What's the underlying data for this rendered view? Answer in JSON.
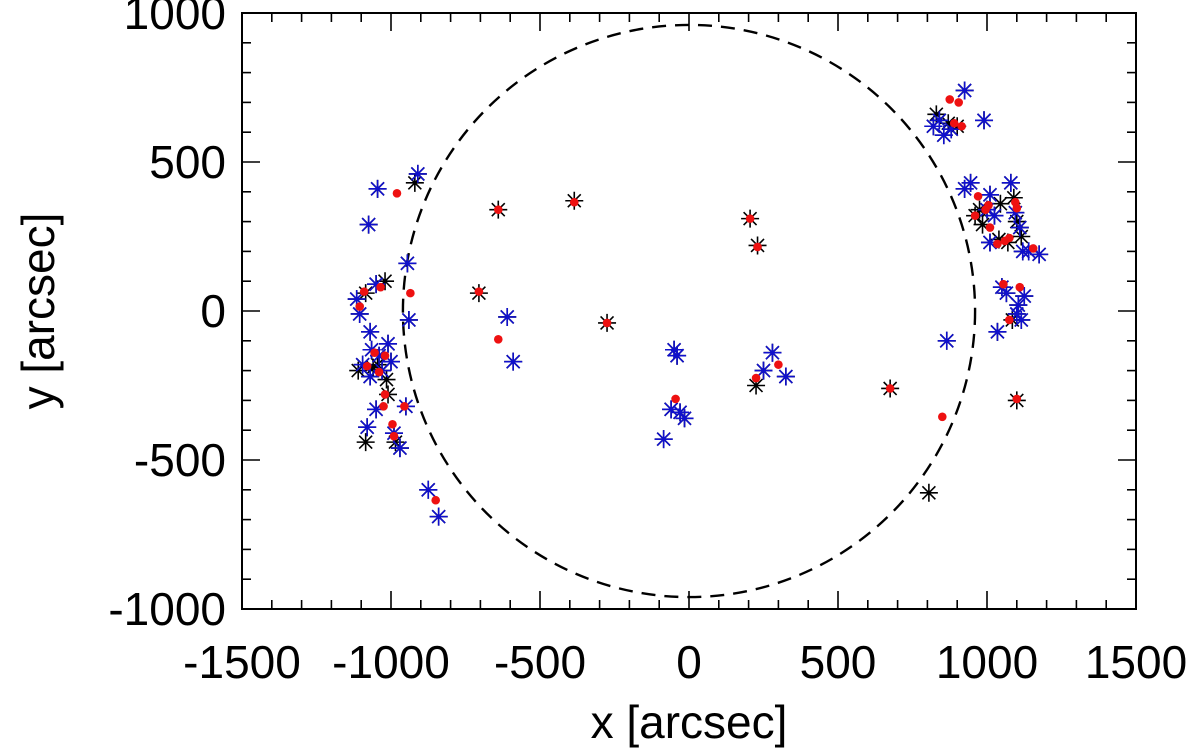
{
  "chart_data": {
    "type": "scatter",
    "title": "",
    "xlabel": "x [arcsec]",
    "ylabel": "y [arcsec]",
    "xlim": [
      -1500,
      1500
    ],
    "ylim": [
      -1000,
      1000
    ],
    "xticks": [
      -1500,
      -1000,
      -500,
      0,
      500,
      1000,
      1500
    ],
    "yticks": [
      -1000,
      -500,
      0,
      500,
      1000
    ],
    "xtick_labels": [
      "-1500",
      "-1000",
      "-500",
      "0",
      "500",
      "1000",
      "1500"
    ],
    "ytick_labels": [
      "-1000",
      "-500",
      "0",
      "500",
      "1000"
    ],
    "limb": {
      "style": "dashed",
      "radius": 960,
      "color": "#000000"
    },
    "series": [
      {
        "name": "black-star",
        "marker": "asterisk",
        "color": "#000000",
        "points": [
          [
            -1115,
            40
          ],
          [
            -1105,
            -10
          ],
          [
            -1085,
            60
          ],
          [
            -1075,
            290
          ],
          [
            -1045,
            410
          ],
          [
            -1050,
            90
          ],
          [
            -1020,
            100
          ],
          [
            -1070,
            -70
          ],
          [
            -1065,
            -130
          ],
          [
            -1040,
            -150
          ],
          [
            -1010,
            -110
          ],
          [
            -1000,
            -170
          ],
          [
            -1030,
            -200
          ],
          [
            -1060,
            -190
          ],
          [
            -1095,
            -180
          ],
          [
            -1110,
            -200
          ],
          [
            -1070,
            -220
          ],
          [
            -1045,
            -180
          ],
          [
            -1015,
            -230
          ],
          [
            -1080,
            -390
          ],
          [
            -1085,
            -440
          ],
          [
            -1050,
            -330
          ],
          [
            -1010,
            -280
          ],
          [
            -990,
            -410
          ],
          [
            -985,
            -440
          ],
          [
            -970,
            -460
          ],
          [
            -950,
            -320
          ],
          [
            -940,
            -30
          ],
          [
            -945,
            160
          ],
          [
            -920,
            430
          ],
          [
            -910,
            460
          ],
          [
            -875,
            -600
          ],
          [
            -840,
            -690
          ],
          [
            -705,
            60
          ],
          [
            -640,
            340
          ],
          [
            -610,
            -20
          ],
          [
            -590,
            -170
          ],
          [
            -385,
            370
          ],
          [
            -275,
            -40
          ],
          [
            -50,
            -130
          ],
          [
            -40,
            -150
          ],
          [
            -60,
            -330
          ],
          [
            -30,
            -340
          ],
          [
            -15,
            -360
          ],
          [
            -85,
            -430
          ],
          [
            205,
            310
          ],
          [
            225,
            -250
          ],
          [
            230,
            220
          ],
          [
            250,
            -200
          ],
          [
            280,
            -140
          ],
          [
            325,
            -220
          ],
          [
            675,
            -260
          ],
          [
            805,
            -610
          ],
          [
            820,
            620
          ],
          [
            830,
            660
          ],
          [
            840,
            640
          ],
          [
            855,
            590
          ],
          [
            870,
            630
          ],
          [
            880,
            610
          ],
          [
            900,
            620
          ],
          [
            925,
            740
          ],
          [
            925,
            410
          ],
          [
            945,
            430
          ],
          [
            960,
            320
          ],
          [
            975,
            340
          ],
          [
            990,
            640
          ],
          [
            985,
            290
          ],
          [
            1000,
            340
          ],
          [
            1010,
            390
          ],
          [
            1025,
            320
          ],
          [
            1045,
            360
          ],
          [
            1010,
            230
          ],
          [
            1040,
            240
          ],
          [
            1070,
            230
          ],
          [
            1080,
            430
          ],
          [
            1090,
            380
          ],
          [
            1095,
            330
          ],
          [
            1100,
            300
          ],
          [
            1110,
            280
          ],
          [
            1115,
            250
          ],
          [
            1120,
            200
          ],
          [
            1140,
            200
          ],
          [
            1050,
            80
          ],
          [
            1065,
            60
          ],
          [
            1085,
            -30
          ],
          [
            1100,
            -10
          ],
          [
            1105,
            20
          ],
          [
            1115,
            -30
          ],
          [
            1125,
            50
          ],
          [
            1175,
            190
          ],
          [
            1035,
            -70
          ],
          [
            865,
            -100
          ],
          [
            1100,
            -300
          ]
        ]
      },
      {
        "name": "blue-star",
        "marker": "asterisk",
        "color": "#1010cc",
        "points": [
          [
            -1115,
            40
          ],
          [
            -1105,
            -10
          ],
          [
            -1075,
            290
          ],
          [
            -1045,
            410
          ],
          [
            -1050,
            90
          ],
          [
            -1070,
            -70
          ],
          [
            -1065,
            -130
          ],
          [
            -1040,
            -150
          ],
          [
            -1010,
            -110
          ],
          [
            -1000,
            -170
          ],
          [
            -1030,
            -200
          ],
          [
            -1095,
            -180
          ],
          [
            -1070,
            -220
          ],
          [
            -1080,
            -390
          ],
          [
            -1050,
            -330
          ],
          [
            -990,
            -410
          ],
          [
            -970,
            -460
          ],
          [
            -950,
            -320
          ],
          [
            -940,
            -30
          ],
          [
            -945,
            160
          ],
          [
            -910,
            460
          ],
          [
            -875,
            -600
          ],
          [
            -840,
            -690
          ],
          [
            -610,
            -20
          ],
          [
            -590,
            -170
          ],
          [
            -50,
            -130
          ],
          [
            -40,
            -150
          ],
          [
            -60,
            -330
          ],
          [
            -30,
            -340
          ],
          [
            -15,
            -360
          ],
          [
            -85,
            -430
          ],
          [
            250,
            -200
          ],
          [
            280,
            -140
          ],
          [
            325,
            -220
          ],
          [
            820,
            620
          ],
          [
            840,
            640
          ],
          [
            855,
            590
          ],
          [
            880,
            610
          ],
          [
            925,
            740
          ],
          [
            925,
            410
          ],
          [
            945,
            430
          ],
          [
            990,
            640
          ],
          [
            1000,
            340
          ],
          [
            1010,
            390
          ],
          [
            1025,
            320
          ],
          [
            1010,
            230
          ],
          [
            1080,
            430
          ],
          [
            1095,
            330
          ],
          [
            1110,
            280
          ],
          [
            1120,
            200
          ],
          [
            1140,
            200
          ],
          [
            1050,
            80
          ],
          [
            1065,
            60
          ],
          [
            1100,
            -10
          ],
          [
            1105,
            20
          ],
          [
            1115,
            -30
          ],
          [
            1125,
            50
          ],
          [
            1175,
            190
          ],
          [
            1035,
            -70
          ],
          [
            865,
            -100
          ]
        ]
      },
      {
        "name": "red-dot",
        "marker": "dot",
        "color": "#ee1111",
        "points": [
          [
            -980,
            395
          ],
          [
            -1090,
            65
          ],
          [
            -1105,
            15
          ],
          [
            -1035,
            80
          ],
          [
            -935,
            60
          ],
          [
            -1055,
            -140
          ],
          [
            -1020,
            -150
          ],
          [
            -1080,
            -185
          ],
          [
            -1040,
            -205
          ],
          [
            -1020,
            -280
          ],
          [
            -1025,
            -320
          ],
          [
            -995,
            -380
          ],
          [
            -990,
            -420
          ],
          [
            -955,
            -320
          ],
          [
            -850,
            -635
          ],
          [
            -705,
            65
          ],
          [
            -640,
            340
          ],
          [
            -640,
            -95
          ],
          [
            -385,
            365
          ],
          [
            -275,
            -40
          ],
          [
            -45,
            -295
          ],
          [
            205,
            310
          ],
          [
            225,
            -225
          ],
          [
            230,
            215
          ],
          [
            300,
            -180
          ],
          [
            675,
            -260
          ],
          [
            850,
            -355
          ],
          [
            875,
            710
          ],
          [
            905,
            700
          ],
          [
            890,
            630
          ],
          [
            915,
            620
          ],
          [
            970,
            385
          ],
          [
            960,
            320
          ],
          [
            995,
            340
          ],
          [
            1005,
            355
          ],
          [
            1010,
            280
          ],
          [
            1035,
            225
          ],
          [
            1060,
            235
          ],
          [
            1075,
            245
          ],
          [
            1095,
            365
          ],
          [
            1100,
            345
          ],
          [
            1110,
            80
          ],
          [
            1055,
            90
          ],
          [
            1075,
            -30
          ],
          [
            1100,
            -295
          ],
          [
            1155,
            210
          ]
        ]
      }
    ]
  }
}
